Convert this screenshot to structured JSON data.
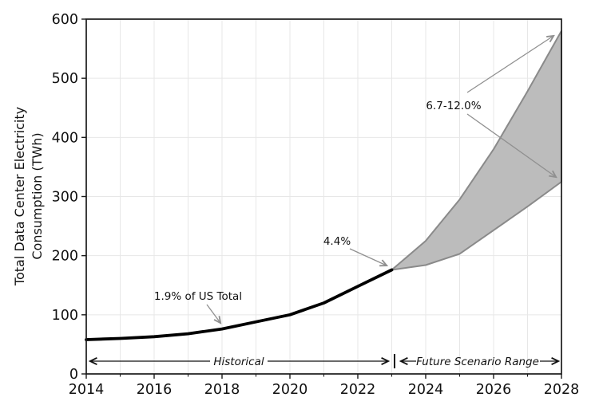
{
  "ui": {
    "y_axis_label_line1": "Total Data Center Electricity",
    "y_axis_label_line2": "Consumption (TWh)"
  },
  "colors": {
    "historical_line": "#000000",
    "band_fill": "#bcbcbc",
    "band_edge": "#8a8a8a",
    "gridline": "#e7e7e7",
    "spine": "#1a1a1a",
    "gray_arrow": "#909090",
    "black_arrow": "#111111"
  },
  "chart_data": {
    "type": "line",
    "title": "",
    "xlabel": "",
    "ylabel": "Total Data Center Electricity Consumption (TWh)",
    "xlim": [
      2014,
      2028
    ],
    "ylim": [
      0,
      600
    ],
    "xticks_major": [
      2014,
      2016,
      2018,
      2020,
      2022,
      2024,
      2026,
      2028
    ],
    "xticks_minor": [
      2015,
      2017,
      2019,
      2021,
      2023,
      2025,
      2027
    ],
    "yticks": [
      0,
      100,
      200,
      300,
      400,
      500,
      600
    ],
    "grid": {
      "vertical_every_year": true,
      "horizontal_every": 100,
      "on": true
    },
    "legend": "none",
    "series": [
      {
        "name": "Historical",
        "x": [
          2014,
          2015,
          2016,
          2017,
          2018,
          2019,
          2020,
          2021,
          2022,
          2023
        ],
        "y": [
          58,
          60,
          63,
          68,
          76,
          88,
          100,
          120,
          148,
          176
        ]
      }
    ],
    "band": {
      "name": "Future Scenario Range",
      "x": [
        2023,
        2024,
        2025,
        2026,
        2027,
        2028
      ],
      "upper": [
        176,
        225,
        295,
        380,
        478,
        580
      ],
      "lower": [
        176,
        184,
        203,
        243,
        283,
        325
      ]
    },
    "annotations": [
      {
        "text": "1.9% of US Total",
        "target_year": 2018,
        "target_value": 76
      },
      {
        "text": "4.4%",
        "target_year": 2023,
        "target_value": 176
      },
      {
        "text": "6.7-12.0%",
        "target_year": 2028,
        "target_low": 325,
        "target_high": 580
      },
      {
        "text": "Historical",
        "span_years": [
          2014,
          2023
        ]
      },
      {
        "text": "Future Scenario Range",
        "span_years": [
          2023,
          2028
        ]
      }
    ]
  }
}
